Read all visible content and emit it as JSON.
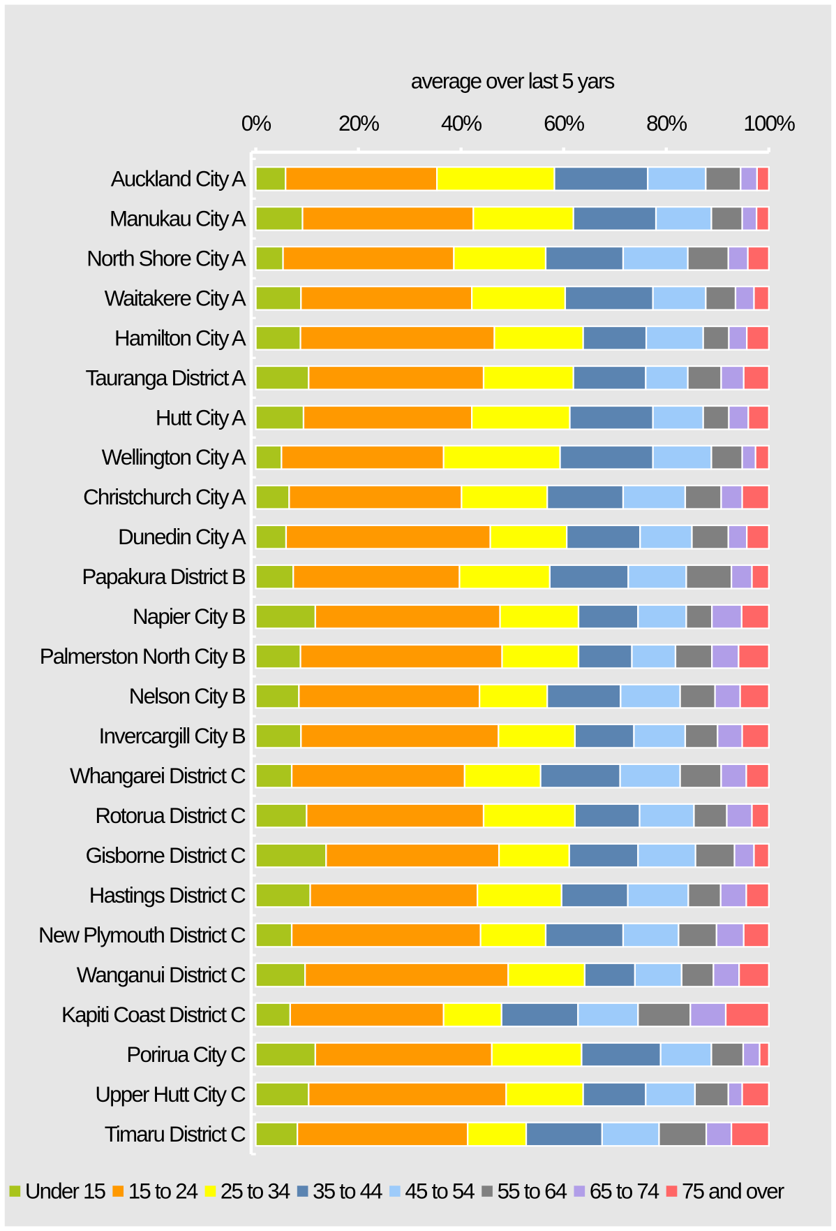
{
  "chart_data": {
    "type": "stacked-bar-horizontal",
    "axis_title": "average over last 5 yars",
    "categories": [
      "Auckland City A",
      "Manukau City A",
      "North Shore City A",
      "Waitakere City A",
      "Hamilton City A",
      "Tauranga District A",
      "Hutt City A",
      "Wellington City A",
      "Christchurch City A",
      "Dunedin City A",
      "Papakura District B",
      "Napier City B",
      "Palmerston North City B",
      "Nelson City B",
      "Invercargill City B",
      "Whangarei District C",
      "Rotorua District C",
      "Gisborne District C",
      "Hastings District C",
      "New Plymouth District C",
      "Wanganui District C",
      "Kapiti Coast District C",
      "Porirua City C",
      "Upper Hutt City C",
      "Timaru District C"
    ],
    "series": [
      {
        "name": "Under 15",
        "color": "#a9c41c",
        "values": [
          5.8,
          9.1,
          5.3,
          8.8,
          8.7,
          10.3,
          9.3,
          5.0,
          6.5,
          5.9,
          7.3,
          11.6,
          8.7,
          8.4,
          8.8,
          7.0,
          9.9,
          13.7,
          10.6,
          7.0,
          9.6,
          6.7,
          11.6,
          10.3,
          8.1
        ]
      },
      {
        "name": "15 to 24",
        "color": "#ff9900",
        "values": [
          29.5,
          33.3,
          33.3,
          33.3,
          37.8,
          34.1,
          32.8,
          31.6,
          33.6,
          39.8,
          32.4,
          36.0,
          39.3,
          35.2,
          38.5,
          33.7,
          34.5,
          33.7,
          32.6,
          36.8,
          39.6,
          29.9,
          34.4,
          38.5,
          33.2
        ]
      },
      {
        "name": "25 to 34",
        "color": "#ffff00",
        "values": [
          22.9,
          19.5,
          17.9,
          18.2,
          17.3,
          17.5,
          19.1,
          22.7,
          16.7,
          14.9,
          17.6,
          15.3,
          14.9,
          13.2,
          14.9,
          14.8,
          17.8,
          13.7,
          16.4,
          12.7,
          14.9,
          11.3,
          17.5,
          15.0,
          11.4
        ]
      },
      {
        "name": "35 to 44",
        "color": "#5b84b1",
        "values": [
          18.2,
          16.1,
          15.1,
          17.1,
          12.3,
          14.1,
          16.2,
          18.1,
          14.8,
          14.3,
          15.3,
          11.6,
          10.4,
          14.3,
          11.5,
          15.5,
          12.6,
          13.4,
          12.9,
          15.1,
          9.8,
          14.9,
          15.4,
          12.2,
          14.8
        ]
      },
      {
        "name": "45 to 54",
        "color": "#9dcbfa",
        "values": [
          11.3,
          10.8,
          12.6,
          10.3,
          11.1,
          8.2,
          9.8,
          11.4,
          12.1,
          10.1,
          11.3,
          9.4,
          8.5,
          11.6,
          10.0,
          11.7,
          10.6,
          11.2,
          11.8,
          10.8,
          9.1,
          11.7,
          9.9,
          9.6,
          11.1
        ]
      },
      {
        "name": "55 to 64",
        "color": "#808080",
        "values": [
          6.8,
          6.0,
          7.9,
          5.8,
          5.0,
          6.5,
          5.0,
          6.0,
          7.0,
          7.1,
          8.8,
          5.0,
          7.1,
          6.8,
          6.3,
          8.0,
          6.4,
          7.6,
          6.3,
          7.4,
          6.2,
          10.2,
          6.2,
          6.5,
          9.2
        ]
      },
      {
        "name": "65 to 74",
        "color": "#b19ee8",
        "values": [
          3.2,
          2.8,
          3.8,
          3.6,
          3.5,
          4.4,
          3.8,
          2.6,
          4.1,
          3.6,
          4.0,
          5.8,
          5.2,
          4.9,
          4.8,
          4.9,
          4.9,
          3.8,
          5.0,
          5.3,
          5.0,
          6.9,
          3.2,
          2.7,
          4.9
        ]
      },
      {
        "name": "75 and over",
        "color": "#ff6666",
        "values": [
          2.3,
          2.4,
          4.1,
          2.9,
          4.3,
          4.9,
          4.0,
          2.6,
          5.2,
          4.3,
          3.3,
          5.3,
          5.9,
          5.6,
          5.2,
          4.4,
          3.3,
          2.9,
          4.4,
          4.9,
          5.8,
          8.4,
          1.8,
          5.2,
          7.3
        ]
      }
    ],
    "xlim": [
      0,
      100
    ],
    "xticks": [
      {
        "value": 0,
        "label": "0%"
      },
      {
        "value": 20,
        "label": "20%"
      },
      {
        "value": 40,
        "label": "40%"
      },
      {
        "value": 60,
        "label": "60%"
      },
      {
        "value": 80,
        "label": "80%"
      },
      {
        "value": 100,
        "label": "100%"
      }
    ],
    "legend": "bottom"
  }
}
